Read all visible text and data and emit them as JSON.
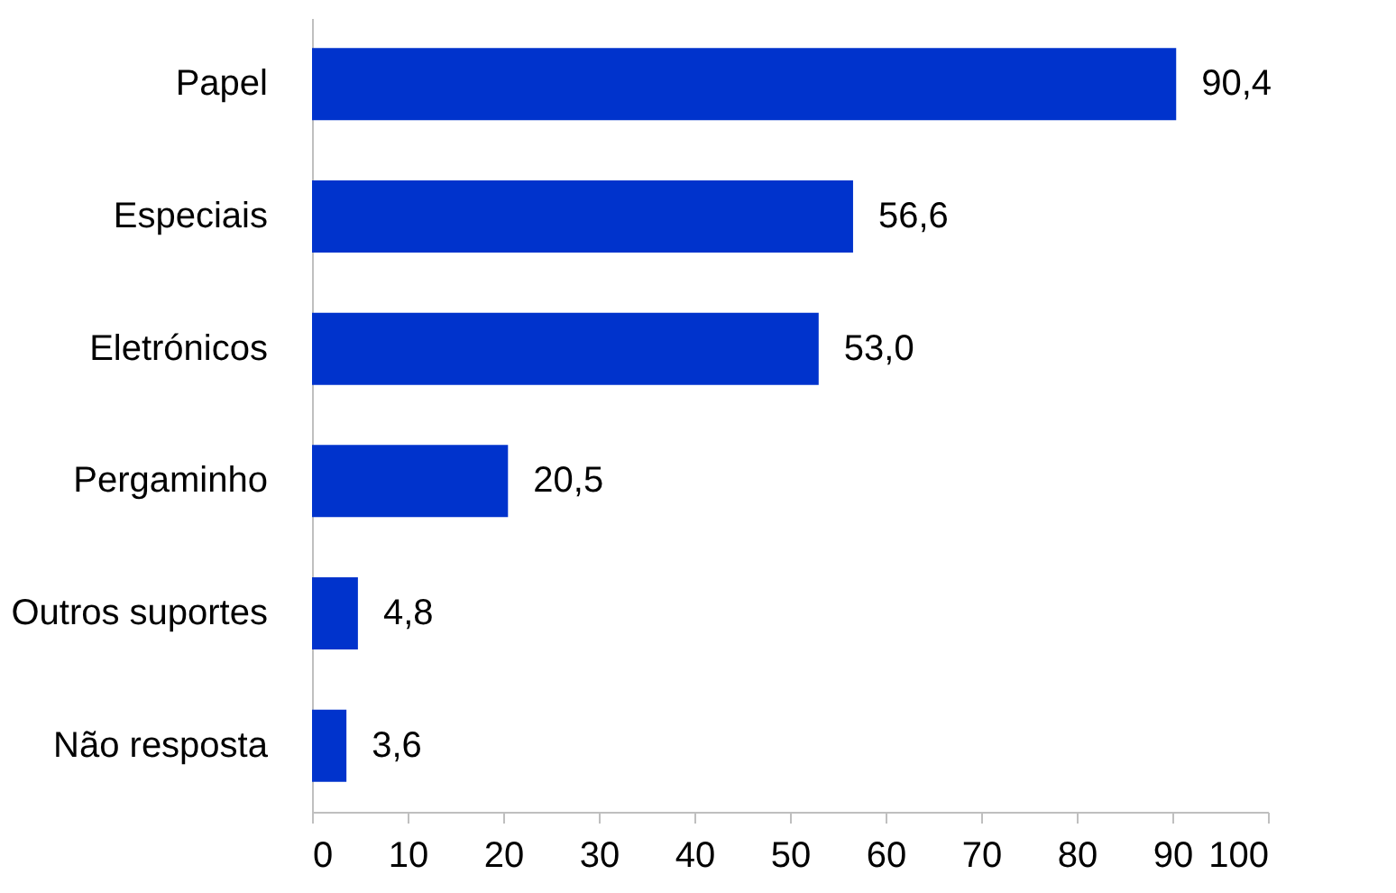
{
  "chart_data": {
    "type": "bar",
    "orientation": "horizontal",
    "categories": [
      "Papel",
      "Especiais",
      "Eletrónicos",
      "Pergaminho",
      "Outros suportes",
      "Não resposta"
    ],
    "values": [
      90.4,
      56.6,
      53.0,
      20.5,
      4.8,
      3.6
    ],
    "value_labels": [
      "90,4",
      "56,6",
      "53,0",
      "20,5",
      "4,8",
      "3,6"
    ],
    "color": "#0033cc",
    "xlim": [
      0,
      100
    ],
    "xticks": [
      0,
      10,
      20,
      30,
      40,
      50,
      60,
      70,
      80,
      90,
      100
    ],
    "grid": false
  }
}
